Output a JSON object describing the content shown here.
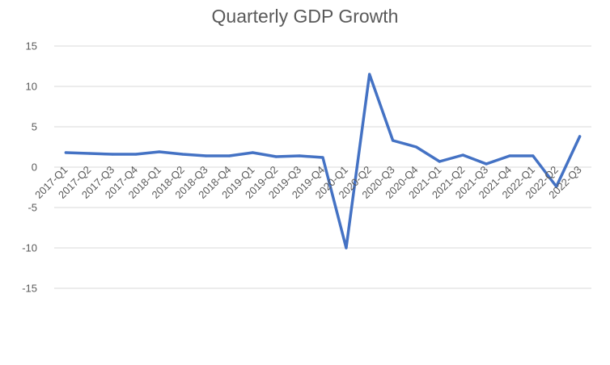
{
  "chart_data": {
    "type": "line",
    "title": "Quarterly GDP Growth",
    "xlabel": "",
    "ylabel": "",
    "ylim": [
      -15,
      15
    ],
    "yticks": [
      15,
      10,
      5,
      0,
      -5,
      -10,
      -15
    ],
    "grid": true,
    "legend": "none",
    "categories": [
      "2017-Q1",
      "2017-Q2",
      "2017-Q3",
      "2017-Q4",
      "2018-Q1",
      "2018-Q2",
      "2018-Q3",
      "2018-Q4",
      "2019-Q1",
      "2019-Q2",
      "2019-Q3",
      "2019-Q4",
      "2020-Q1",
      "2020-Q2",
      "2020-Q3",
      "2020-Q4",
      "2021-Q1",
      "2021-Q2",
      "2021-Q3",
      "2021-Q4",
      "2022-Q1",
      "2022-Q2",
      "2022-Q3"
    ],
    "series": [
      {
        "values": [
          1.8,
          1.7,
          1.6,
          1.6,
          1.9,
          1.6,
          1.4,
          1.4,
          1.8,
          1.3,
          1.4,
          1.2,
          -10.0,
          11.5,
          3.3,
          2.5,
          0.7,
          1.5,
          0.4,
          1.4,
          1.4,
          -2.4,
          3.8
        ],
        "color": "#4472c4"
      }
    ]
  }
}
